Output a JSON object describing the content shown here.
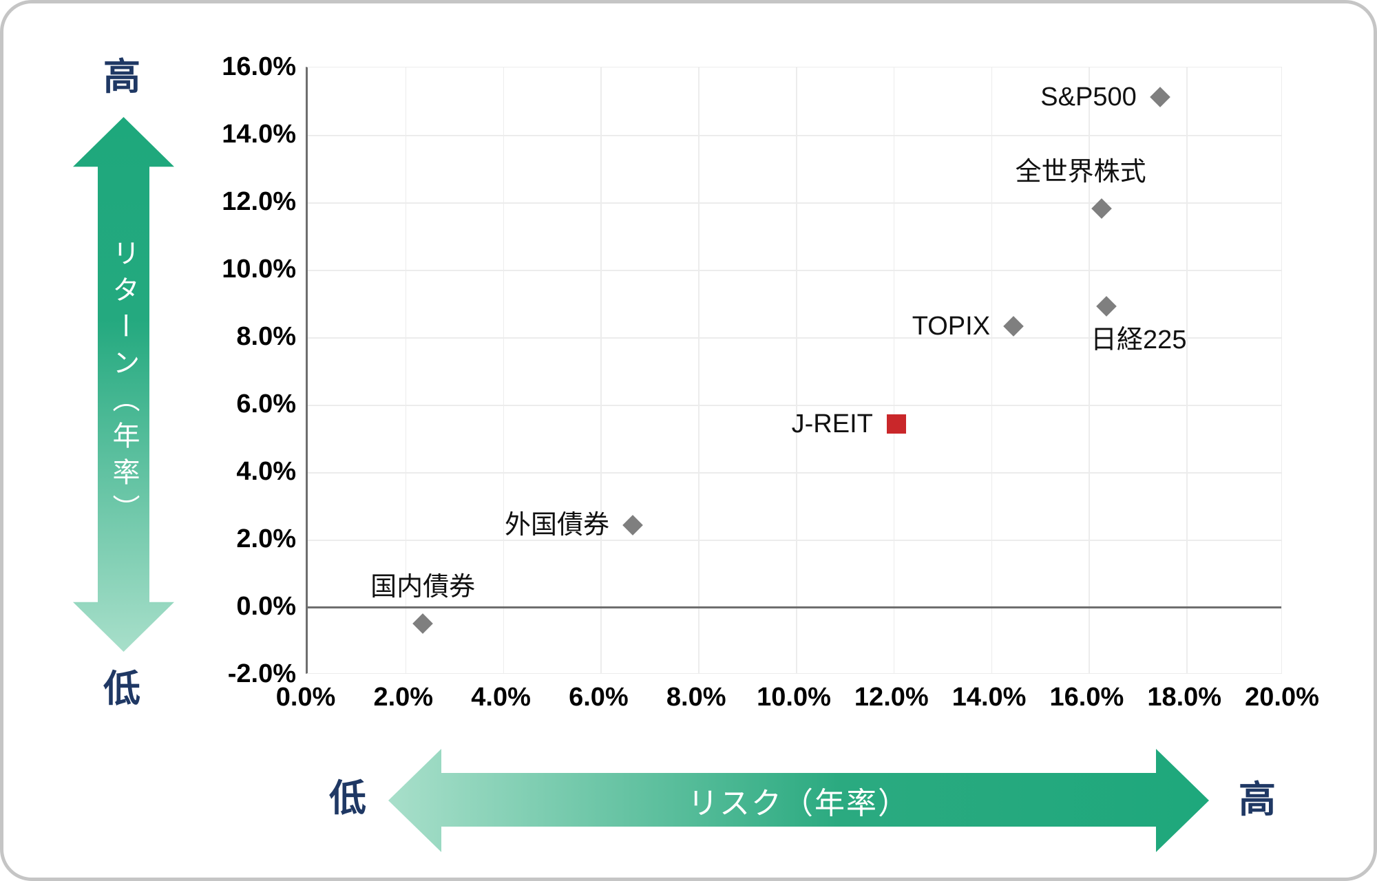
{
  "card": {
    "background": "#ffffff",
    "border_color": "#c5c5c5"
  },
  "annotations": {
    "return_high": "高",
    "return_low": "低",
    "risk_low": "低",
    "risk_high": "高"
  },
  "colors": {
    "arrow_green": "#1ea87c",
    "arrow_green_light": "#a8dfca",
    "marker_gray": "#7f7f7f",
    "marker_red": "#c9272a",
    "navy_label": "#1f3864",
    "gridline": "#ececec",
    "zero_line": "#6e6e6e",
    "tick_text": "#000000"
  },
  "chart_data": {
    "type": "scatter",
    "title": "",
    "xlabel": "リスク（年率）",
    "ylabel": "リターン（年率）",
    "x_range": [
      0,
      20
    ],
    "y_range": [
      -2,
      16
    ],
    "grid": true,
    "zero_line": true,
    "legend": "none",
    "x_ticks": [
      {
        "value": 0,
        "label": "0.0%"
      },
      {
        "value": 2,
        "label": "2.0%"
      },
      {
        "value": 4,
        "label": "4.0%"
      },
      {
        "value": 6,
        "label": "6.0%"
      },
      {
        "value": 8,
        "label": "8.0%"
      },
      {
        "value": 10,
        "label": "10.0%"
      },
      {
        "value": 12,
        "label": "12.0%"
      },
      {
        "value": 14,
        "label": "14.0%"
      },
      {
        "value": 16,
        "label": "16.0%"
      },
      {
        "value": 18,
        "label": "18.0%"
      },
      {
        "value": 20,
        "label": "20.0%"
      }
    ],
    "y_ticks": [
      {
        "value": 16,
        "label": "16.0%"
      },
      {
        "value": 14,
        "label": "14.0%"
      },
      {
        "value": 12,
        "label": "12.0%"
      },
      {
        "value": 10,
        "label": "10.0%"
      },
      {
        "value": 8,
        "label": "8.0%"
      },
      {
        "value": 6,
        "label": "6.0%"
      },
      {
        "value": 4,
        "label": "4.0%"
      },
      {
        "value": 2,
        "label": "2.0%"
      },
      {
        "value": 0,
        "label": "0.0%"
      },
      {
        "value": -2,
        "label": "-2.0%"
      }
    ],
    "points": [
      {
        "name": "国内債券",
        "risk": 2.4,
        "return": -0.5,
        "marker": "diamond",
        "color": "#7f7f7f",
        "label_side": "above",
        "label_dx": 0
      },
      {
        "name": "外国債券",
        "risk": 6.7,
        "return": 2.4,
        "marker": "diamond",
        "color": "#7f7f7f",
        "label_side": "left",
        "label_dx": 0
      },
      {
        "name": "J-REIT",
        "risk": 12.1,
        "return": 5.4,
        "marker": "square",
        "color": "#c9272a",
        "label_side": "left",
        "label_dx": 0
      },
      {
        "name": "TOPIX",
        "risk": 14.5,
        "return": 8.3,
        "marker": "diamond",
        "color": "#7f7f7f",
        "label_side": "left",
        "label_dx": 0
      },
      {
        "name": "日経225",
        "risk": 16.4,
        "return": 8.9,
        "marker": "diamond",
        "color": "#7f7f7f",
        "label_side": "below",
        "label_dx": 47
      },
      {
        "name": "全世界株式",
        "risk": 16.3,
        "return": 11.8,
        "marker": "diamond",
        "color": "#7f7f7f",
        "label_side": "above",
        "label_dx": -30
      },
      {
        "name": "S&P500",
        "risk": 17.5,
        "return": 15.1,
        "marker": "diamond",
        "color": "#7f7f7f",
        "label_side": "left",
        "label_dx": 0
      }
    ]
  }
}
